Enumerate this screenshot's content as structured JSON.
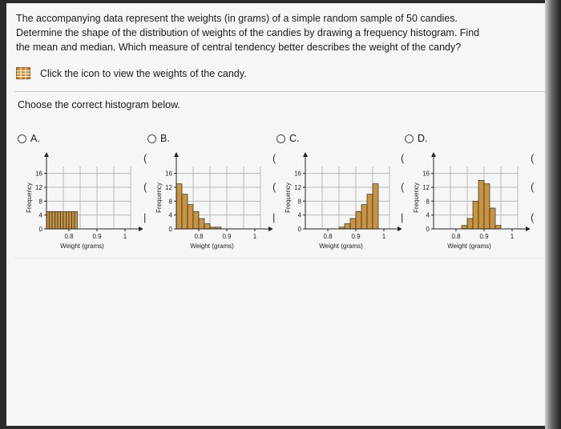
{
  "question": {
    "line1": "The accompanying data represent the weights (in grams) of a simple random sample of 50 candies.",
    "line2": "Determine the shape of the distribution of weights of the candies by drawing a frequency histogram. Find",
    "line3": "the mean and median. Which measure of central tendency better describes the weight of the candy?"
  },
  "data_link": {
    "label": "Click the icon to view the weights of the candy.",
    "icon": "table-grid-icon"
  },
  "prompt": "Choose the correct histogram below.",
  "options": [
    {
      "label": "A.",
      "selected": false
    },
    {
      "label": "B.",
      "selected": false
    },
    {
      "label": "C.",
      "selected": false
    },
    {
      "label": "D.",
      "selected": false
    }
  ],
  "colors": {
    "bar": "#c8943f",
    "bar_stroke": "#2a2a2a",
    "grid": "#b9b9b9",
    "icon": "#d08a2c"
  },
  "chart_data": [
    {
      "type": "bar",
      "option": "A",
      "x_ticks": [
        0.8,
        0.9,
        1
      ],
      "y_ticks": [
        0,
        4,
        8,
        12,
        16
      ],
      "xlabel": "Weight (grams)",
      "ylabel": "Frequency",
      "xlim": [
        0.72,
        1.02
      ],
      "ylim": [
        0,
        18
      ],
      "bin_edges": [
        0.72,
        0.73,
        0.74,
        0.75,
        0.76,
        0.77,
        0.78,
        0.79,
        0.8,
        0.81,
        0.82,
        0.83
      ],
      "values": [
        5,
        5,
        5,
        5,
        5,
        5,
        5,
        5,
        5,
        5,
        5
      ],
      "grid": true
    },
    {
      "type": "bar",
      "option": "B",
      "x_ticks": [
        0.8,
        0.9,
        1
      ],
      "y_ticks": [
        0,
        4,
        8,
        12,
        16
      ],
      "xlabel": "Weight (grams)",
      "ylabel": "Frequency",
      "xlim": [
        0.72,
        1.02
      ],
      "ylim": [
        0,
        18
      ],
      "bin_edges": [
        0.72,
        0.74,
        0.76,
        0.78,
        0.8,
        0.82,
        0.84,
        0.86,
        0.88
      ],
      "values": [
        13,
        10,
        7,
        5,
        3,
        1.5,
        0.5,
        0.5
      ],
      "grid": true
    },
    {
      "type": "bar",
      "option": "C",
      "x_ticks": [
        0.8,
        0.9,
        1
      ],
      "y_ticks": [
        0,
        4,
        8,
        12,
        16
      ],
      "xlabel": "Weight (grams)",
      "ylabel": "Frequency",
      "xlim": [
        0.72,
        1.02
      ],
      "ylim": [
        0,
        18
      ],
      "bin_edges": [
        0.84,
        0.86,
        0.88,
        0.9,
        0.92,
        0.94,
        0.96,
        0.98
      ],
      "values": [
        0.5,
        1.5,
        3,
        5,
        7,
        10,
        13
      ],
      "grid": true
    },
    {
      "type": "bar",
      "option": "D",
      "x_ticks": [
        0.8,
        0.9,
        1
      ],
      "y_ticks": [
        0,
        4,
        8,
        12,
        16
      ],
      "xlabel": "Weight (grams)",
      "ylabel": "Frequency",
      "xlim": [
        0.72,
        1.02
      ],
      "ylim": [
        0,
        18
      ],
      "bin_edges": [
        0.82,
        0.84,
        0.86,
        0.88,
        0.9,
        0.92,
        0.94,
        0.96
      ],
      "values": [
        1,
        3,
        8,
        14,
        13,
        6,
        1
      ],
      "grid": true
    }
  ]
}
